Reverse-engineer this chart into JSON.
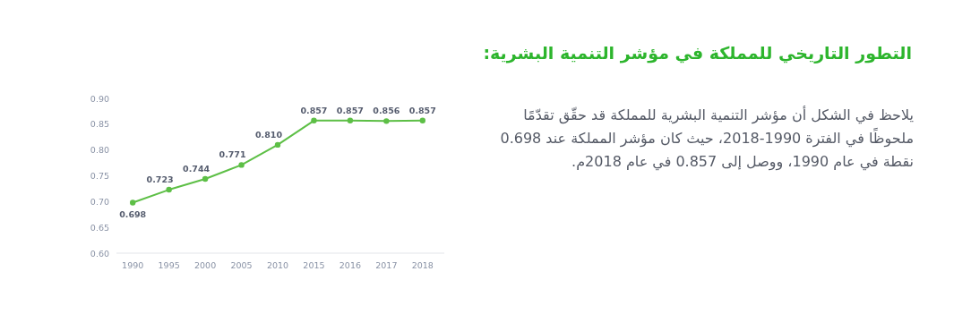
{
  "chart_data": {
    "type": "line",
    "title": "التطور التاريخي للمملكة في مؤشر التنمية البشرية:",
    "annotations": [
      "يلاحظ في الشكل أن مؤشر التنمية البشرية للمملكة قد حقّق تقدّمًا ملحوظًا في الفترة 1990-2018، حيث كان مؤشر المملكة عند 0.698 نقطة في عام 1990، ووصل إلى 0.857 في عام 2018م."
    ],
    "categories": [
      "1990",
      "1995",
      "2000",
      "2005",
      "2010",
      "2015",
      "2016",
      "2017",
      "2018"
    ],
    "values": [
      0.698,
      0.723,
      0.744,
      0.771,
      0.81,
      0.857,
      0.857,
      0.856,
      0.857
    ],
    "value_labels": [
      "0.698",
      "0.723",
      "0.744",
      "0.771",
      "0.810",
      "0.857",
      "0.857",
      "0.856",
      "0.857"
    ],
    "color": "#5dbf46",
    "marker": "circle",
    "line_style": "solid",
    "grid": false,
    "ylim": [
      0.6,
      0.9
    ],
    "yticks": [
      {
        "value": 0.6,
        "label": "0.60"
      },
      {
        "value": 0.65,
        "label": "0.65"
      },
      {
        "value": 0.7,
        "label": "0.70"
      },
      {
        "value": 0.75,
        "label": "0.75"
      },
      {
        "value": 0.8,
        "label": "0.80"
      },
      {
        "value": 0.85,
        "label": "0.85"
      },
      {
        "value": 0.9,
        "label": "0.90"
      }
    ]
  }
}
